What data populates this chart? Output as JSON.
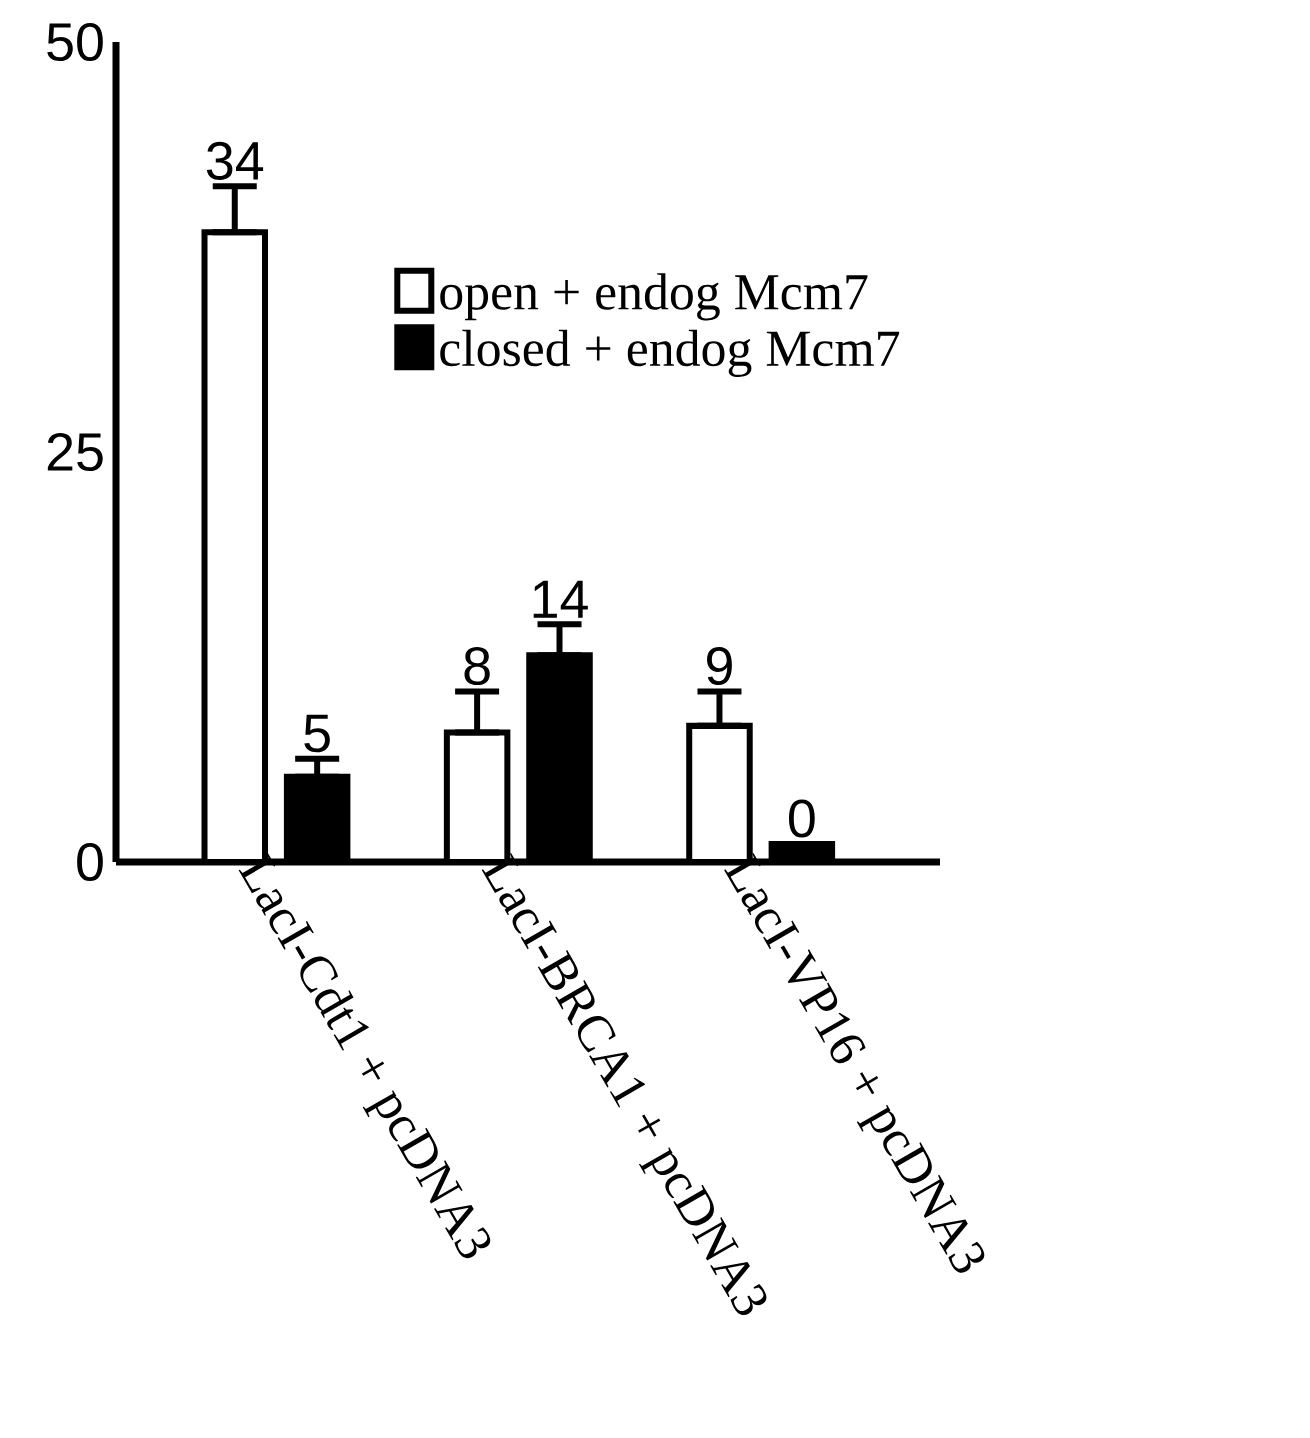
{
  "chart_data": {
    "type": "bar",
    "categories": [
      "LacI-Cdt1 + pcDNA3",
      "LacI-BRCA1 + pcDNA3",
      "LacI-VP16 + pcDNA3"
    ],
    "series": [
      {
        "name": "open + endog Mcm7",
        "color": "#ffffff",
        "values": [
          38.4,
          7.9,
          8.3
        ],
        "errors": [
          [
            38.4,
            41.2
          ],
          [
            7.9,
            10.4
          ],
          [
            8.3,
            10.4
          ]
        ]
      },
      {
        "name": "closed + endog Mcm7",
        "color": "#000000",
        "values": [
          5.2,
          12.6,
          1.1
        ],
        "errors": [
          [
            5.2,
            6.3
          ],
          [
            12.6,
            14.5
          ],
          null
        ]
      }
    ],
    "annotations": [
      "34",
      "5",
      "8",
      "14",
      "9",
      "0"
    ],
    "ylim": [
      0,
      50
    ],
    "yticks": [
      0,
      25,
      50
    ],
    "legend": "top right"
  }
}
